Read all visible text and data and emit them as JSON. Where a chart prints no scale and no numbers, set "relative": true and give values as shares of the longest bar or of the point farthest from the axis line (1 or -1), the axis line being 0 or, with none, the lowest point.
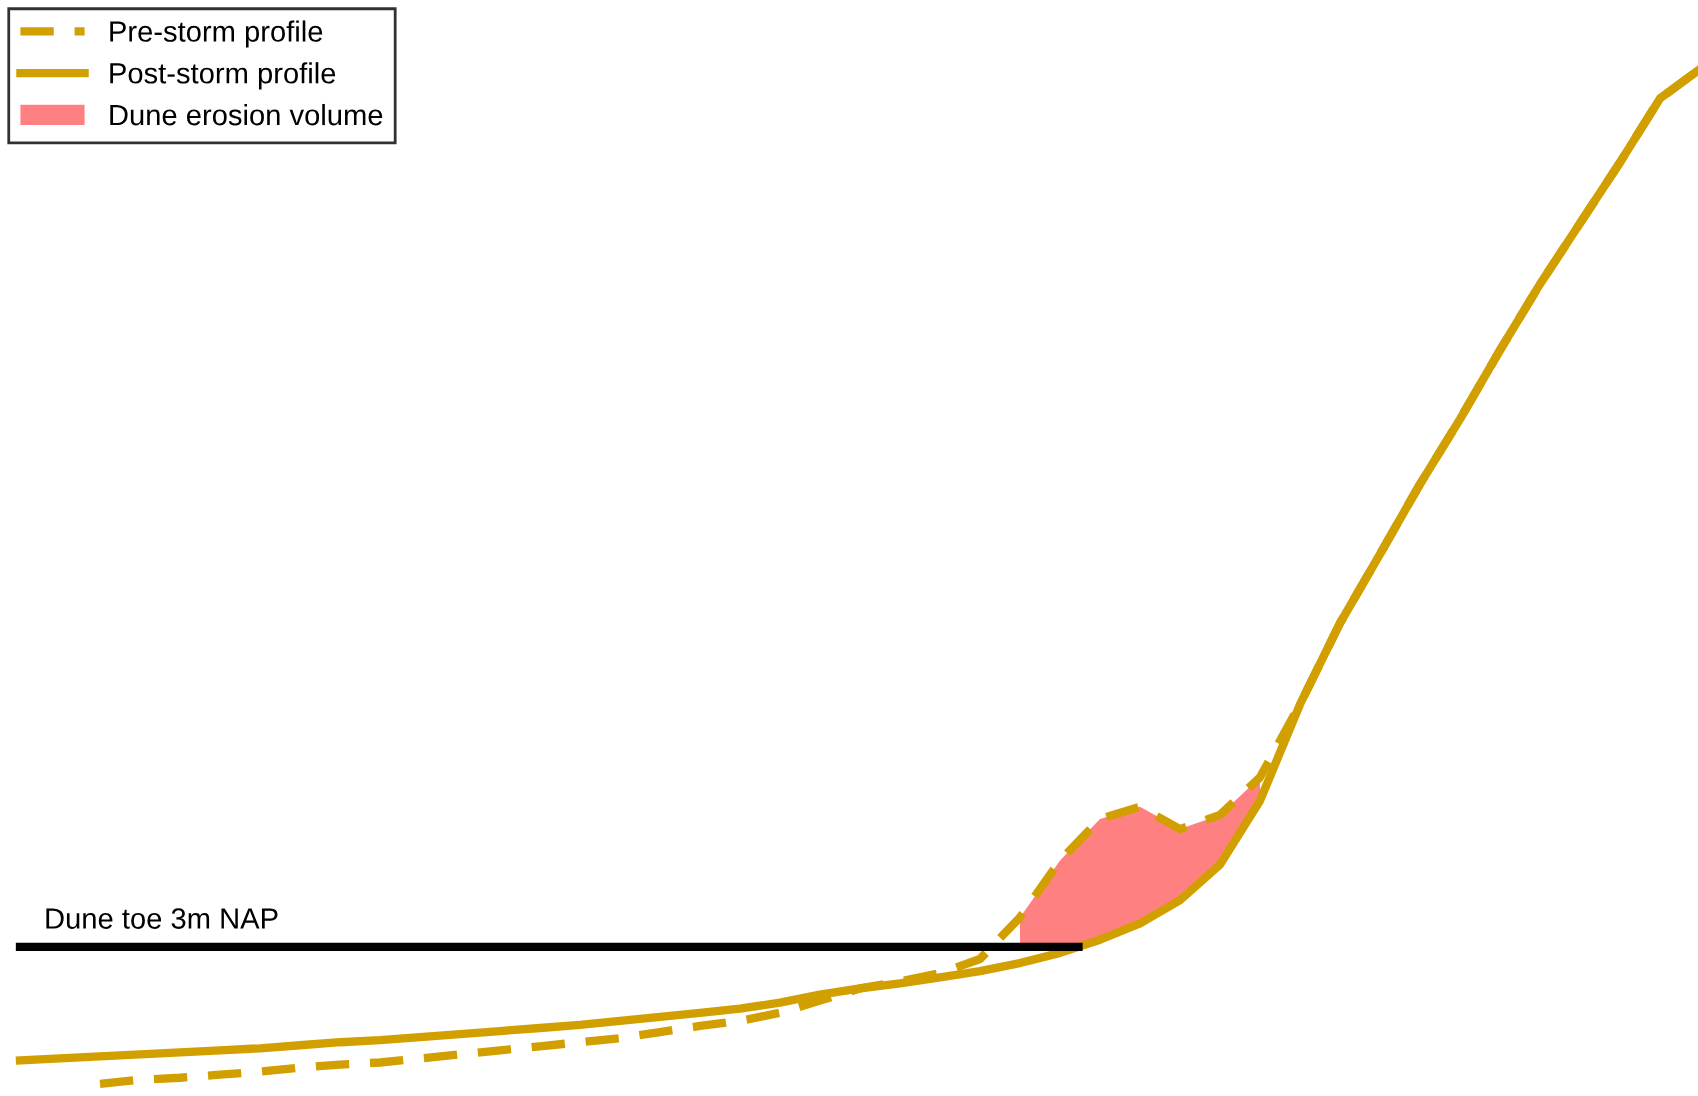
{
  "chart_data": {
    "type": "line",
    "relative": true,
    "legend": "top left",
    "categories": [
      null,
      null,
      null,
      null,
      null,
      null,
      null,
      null,
      null,
      null,
      null,
      null,
      null,
      null,
      null,
      null,
      null,
      null,
      null,
      null,
      null,
      null,
      null,
      null,
      null,
      null,
      null,
      null,
      null,
      null,
      null,
      null,
      null,
      null,
      null,
      null,
      null,
      null,
      null,
      null,
      null,
      null,
      null
    ],
    "series": [
      {
        "name": "Pre-storm profile",
        "line_style": "dashed",
        "color": "#d29f00",
        "values": [
          null,
          null,
          0,
          0.004,
          0.006,
          0.009,
          0.012,
          0.016,
          0.019,
          0.021,
          0.025,
          0.029,
          0.033,
          0.037,
          0.041,
          0.045,
          0.051,
          0.057,
          0.062,
          0.07,
          0.082,
          0.094,
          0.101,
          0.109,
          0.123,
          0.164,
          0.22,
          0.261,
          0.273,
          0.251,
          0.265,
          0.302,
          0.374,
          0.454,
          0.522,
          0.591,
          0.655,
          0.723,
          0.788,
          0.848,
          0.908,
          0.971,
          1
        ]
      },
      {
        "name": "Post-storm profile",
        "line_style": "solid",
        "color": "#d29f00",
        "values": [
          0.023,
          0.025,
          0.027,
          0.029,
          0.031,
          0.033,
          0.035,
          0.038,
          0.041,
          0.043,
          0.046,
          0.049,
          0.052,
          0.055,
          0.058,
          0.062,
          0.066,
          0.07,
          0.074,
          0.08,
          0.088,
          0.094,
          0.099,
          0.105,
          0.111,
          0.119,
          0.129,
          0.142,
          0.158,
          0.181,
          0.216,
          0.279,
          0.374,
          0.454,
          0.522,
          0.591,
          0.655,
          0.723,
          0.788,
          0.848,
          0.908,
          0.971,
          1
        ]
      },
      {
        "name": "Dune erosion volume",
        "type": "area",
        "color": "#ff8080",
        "values": [
          null,
          null,
          null,
          null,
          null,
          null,
          null,
          null,
          null,
          null,
          null,
          null,
          null,
          null,
          null,
          null,
          null,
          null,
          null,
          null,
          null,
          null,
          null,
          null,
          null,
          0.164,
          0.22,
          0.261,
          0.273,
          0.251,
          0.265,
          0.302,
          null,
          null,
          null,
          null,
          null,
          null,
          null,
          null,
          null,
          null,
          null
        ]
      }
    ],
    "ref_lines": [
      {
        "axis": "y",
        "value": 0.135,
        "label": "Dune toe 3m NAP",
        "color": "#000000",
        "line_style": "solid"
      }
    ]
  }
}
